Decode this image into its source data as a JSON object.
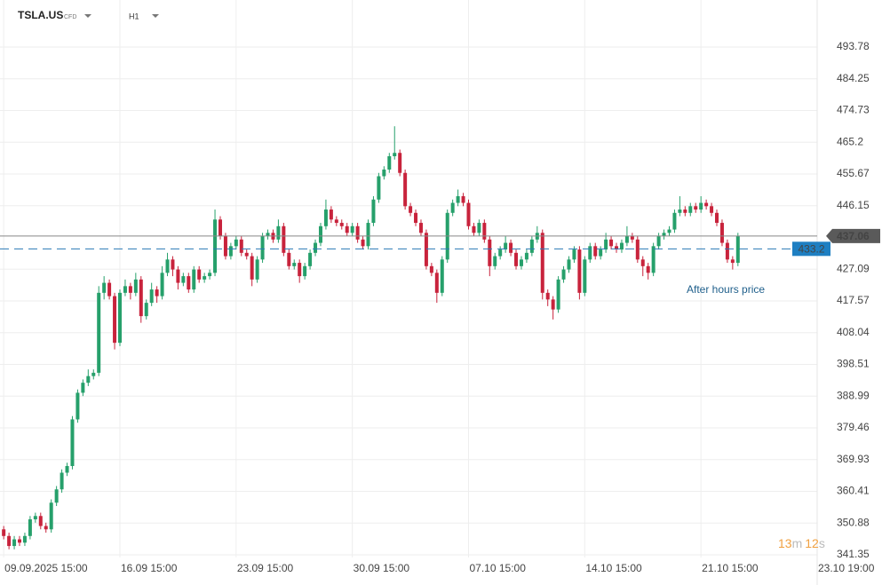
{
  "chart_data": {
    "type": "candlestick",
    "symbol": "TSLA.US",
    "instrument_type": "CFD",
    "interval": "H1",
    "up_color": "#26a06b",
    "down_color": "#c8233c",
    "last_price": 437.06,
    "after_hours_price": 433.2,
    "after_hours_label": "After hours price",
    "countdown": {
      "minutes": "13",
      "minutes_unit": "m",
      "seconds": "12",
      "seconds_unit": "s"
    },
    "grid": true,
    "xlim": [
      -0.7,
      154
    ],
    "ylim": [
      340.55,
      507.9
    ],
    "xticks": [
      {
        "value": 0,
        "label": "09.09.2025 15:00"
      },
      {
        "value": 22,
        "label": "16.09 15:00"
      },
      {
        "value": 44,
        "label": "23.09 15:00"
      },
      {
        "value": 66,
        "label": "30.09 15:00"
      },
      {
        "value": 88,
        "label": "07.10 15:00"
      },
      {
        "value": 110,
        "label": "14.10 15:00"
      },
      {
        "value": 132,
        "label": "21.10 15:00"
      },
      {
        "value": 154,
        "label": "23.10 19:00"
      }
    ],
    "yticks": [
      493.78,
      484.25,
      474.73,
      465.2,
      455.67,
      446.15,
      427.09,
      417.57,
      408.04,
      398.51,
      388.99,
      379.46,
      369.93,
      360.41,
      350.88,
      341.35
    ],
    "ohlc": [
      [
        349,
        350,
        346,
        347
      ],
      [
        347,
        348,
        343,
        344
      ],
      [
        344,
        347,
        343,
        346
      ],
      [
        346,
        347,
        344,
        345
      ],
      [
        345,
        348,
        344,
        347
      ],
      [
        347,
        353,
        346,
        352
      ],
      [
        352,
        354,
        351,
        353
      ],
      [
        353,
        354,
        349,
        350
      ],
      [
        350,
        351,
        348,
        349
      ],
      [
        349,
        358,
        348,
        357
      ],
      [
        357,
        362,
        356,
        361
      ],
      [
        361,
        367,
        360,
        366
      ],
      [
        366,
        369,
        365,
        368
      ],
      [
        368,
        383,
        367,
        382
      ],
      [
        382,
        391,
        381,
        390
      ],
      [
        390,
        394,
        389,
        393
      ],
      [
        393,
        397,
        392,
        395
      ],
      [
        395,
        397,
        394,
        396
      ],
      [
        396,
        422,
        395,
        420
      ],
      [
        420,
        425,
        418,
        423
      ],
      [
        423,
        424,
        418,
        419
      ],
      [
        419,
        420,
        403,
        405
      ],
      [
        405,
        421,
        404,
        420
      ],
      [
        420,
        424,
        419,
        422
      ],
      [
        422,
        423,
        418,
        420
      ],
      [
        420,
        426,
        419,
        424
      ],
      [
        424,
        425,
        411,
        413
      ],
      [
        413,
        418,
        412,
        417
      ],
      [
        417,
        423,
        416,
        421
      ],
      [
        421,
        422,
        417,
        419
      ],
      [
        419,
        428,
        418,
        426
      ],
      [
        426,
        432,
        425,
        430
      ],
      [
        430,
        431,
        425,
        427
      ],
      [
        427,
        428,
        421,
        423
      ],
      [
        423,
        426,
        422,
        425
      ],
      [
        425,
        426,
        420,
        421
      ],
      [
        421,
        428,
        420,
        427
      ],
      [
        427,
        428,
        423,
        424
      ],
      [
        424,
        426,
        423,
        425
      ],
      [
        425,
        427,
        424,
        426
      ],
      [
        426,
        445,
        425,
        442
      ],
      [
        442,
        443,
        436,
        437
      ],
      [
        437,
        438,
        430,
        431
      ],
      [
        431,
        435,
        430,
        434
      ],
      [
        434,
        437,
        433,
        436
      ],
      [
        436,
        437,
        431,
        432
      ],
      [
        432,
        433,
        430,
        431
      ],
      [
        431,
        432,
        422,
        424
      ],
      [
        424,
        431,
        423,
        430
      ],
      [
        430,
        438,
        429,
        437
      ],
      [
        437,
        439,
        436,
        438
      ],
      [
        438,
        439,
        435,
        436
      ],
      [
        436,
        442,
        435,
        440
      ],
      [
        440,
        441,
        431,
        432
      ],
      [
        432,
        433,
        427,
        428
      ],
      [
        428,
        430,
        427,
        429
      ],
      [
        429,
        430,
        423,
        425
      ],
      [
        425,
        429,
        424,
        428
      ],
      [
        428,
        433,
        427,
        432
      ],
      [
        432,
        436,
        431,
        435
      ],
      [
        435,
        441,
        434,
        440
      ],
      [
        440,
        448,
        439,
        445
      ],
      [
        445,
        446,
        441,
        442
      ],
      [
        442,
        443,
        440,
        441
      ],
      [
        441,
        442,
        439,
        440
      ],
      [
        440,
        441,
        437,
        438
      ],
      [
        438,
        441,
        437,
        440
      ],
      [
        440,
        441,
        435,
        436
      ],
      [
        436,
        437,
        433,
        434
      ],
      [
        434,
        442,
        433,
        441
      ],
      [
        441,
        449,
        440,
        448
      ],
      [
        448,
        456,
        447,
        455
      ],
      [
        455,
        458,
        454,
        457
      ],
      [
        457,
        462,
        456,
        461
      ],
      [
        461,
        470,
        460,
        462
      ],
      [
        462,
        463,
        455,
        456
      ],
      [
        456,
        457,
        445,
        446
      ],
      [
        446,
        447,
        443,
        444
      ],
      [
        444,
        445,
        440,
        441
      ],
      [
        441,
        442,
        437,
        438
      ],
      [
        438,
        439,
        427,
        428
      ],
      [
        428,
        429,
        425,
        426
      ],
      [
        426,
        427,
        417,
        420
      ],
      [
        420,
        431,
        419,
        430
      ],
      [
        430,
        445,
        429,
        444
      ],
      [
        444,
        448,
        443,
        447
      ],
      [
        447,
        451,
        446,
        449
      ],
      [
        449,
        450,
        446,
        447
      ],
      [
        447,
        448,
        439,
        440
      ],
      [
        440,
        441,
        437,
        438
      ],
      [
        438,
        442,
        437,
        441
      ],
      [
        441,
        442,
        435,
        436
      ],
      [
        436,
        437,
        425,
        428
      ],
      [
        428,
        432,
        427,
        431
      ],
      [
        431,
        434,
        430,
        433
      ],
      [
        433,
        437,
        432,
        435
      ],
      [
        435,
        436,
        431,
        432
      ],
      [
        432,
        433,
        427,
        428
      ],
      [
        428,
        431,
        427,
        430
      ],
      [
        430,
        433,
        429,
        432
      ],
      [
        432,
        437,
        431,
        436
      ],
      [
        436,
        440,
        435,
        438
      ],
      [
        438,
        439,
        418,
        420
      ],
      [
        420,
        421,
        416,
        418
      ],
      [
        418,
        419,
        412,
        415
      ],
      [
        415,
        425,
        414,
        424
      ],
      [
        424,
        428,
        423,
        427
      ],
      [
        427,
        431,
        426,
        430
      ],
      [
        430,
        434,
        429,
        433
      ],
      [
        433,
        434,
        418,
        420
      ],
      [
        420,
        431,
        419,
        430
      ],
      [
        430,
        435,
        429,
        434
      ],
      [
        434,
        435,
        430,
        431
      ],
      [
        431,
        434,
        430,
        433
      ],
      [
        433,
        438,
        432,
        436
      ],
      [
        436,
        437,
        433,
        434
      ],
      [
        434,
        435,
        432,
        433
      ],
      [
        433,
        436,
        432,
        435
      ],
      [
        435,
        440,
        434,
        437
      ],
      [
        437,
        438,
        435,
        436
      ],
      [
        436,
        437,
        429,
        430
      ],
      [
        430,
        431,
        425,
        428
      ],
      [
        428,
        429,
        424,
        426
      ],
      [
        426,
        435,
        425,
        434
      ],
      [
        434,
        438,
        433,
        437
      ],
      [
        437,
        439,
        436,
        438
      ],
      [
        438,
        440,
        437,
        439
      ],
      [
        439,
        445,
        438,
        444
      ],
      [
        444,
        449,
        443,
        445
      ],
      [
        445,
        446,
        443,
        444
      ],
      [
        444,
        447,
        443,
        446
      ],
      [
        446,
        447,
        444,
        445
      ],
      [
        445,
        449,
        444,
        447
      ],
      [
        447,
        448,
        445,
        446
      ],
      [
        446,
        447,
        443,
        444
      ],
      [
        444,
        445,
        440,
        441
      ],
      [
        441,
        442,
        434,
        435
      ],
      [
        435,
        436,
        429,
        430
      ],
      [
        430,
        431,
        427,
        429
      ],
      [
        429,
        438,
        428,
        437.06
      ]
    ]
  }
}
